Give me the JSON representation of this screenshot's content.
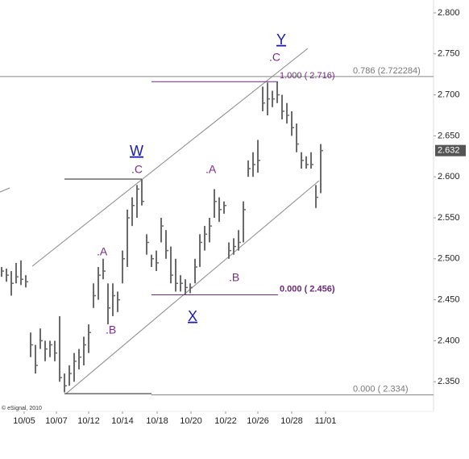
{
  "chart_data": {
    "type": "ohlc",
    "copyright": "© eSignal, 2010",
    "x": [
      2,
      8,
      14,
      20,
      26,
      32,
      38,
      44,
      50,
      56,
      62,
      68,
      74,
      80,
      86,
      92,
      98,
      104,
      110,
      116,
      122,
      128,
      134,
      140,
      146,
      152,
      158,
      164,
      170,
      176,
      182,
      188,
      194,
      200,
      206,
      212,
      218,
      224,
      230,
      236,
      242,
      248,
      254,
      260,
      266,
      272,
      278,
      284,
      290,
      296,
      302,
      308,
      314,
      320,
      326,
      332,
      338,
      344,
      350,
      356,
      362,
      368,
      374,
      380,
      386,
      392,
      398
    ],
    "high": [
      2.49,
      2.488,
      2.485,
      2.495,
      2.498,
      2.48,
      2.41,
      2.395,
      2.415,
      2.4,
      2.4,
      2.4,
      2.43,
      2.36,
      2.37,
      2.385,
      2.39,
      2.405,
      2.42,
      2.47,
      2.49,
      2.5,
      2.47,
      2.47,
      2.46,
      2.51,
      2.56,
      2.575,
      2.59,
      2.597,
      2.53,
      2.505,
      2.51,
      2.55,
      2.535,
      2.515,
      2.5,
      2.48,
      2.475,
      2.47,
      2.5,
      2.53,
      2.54,
      2.55,
      2.585,
      2.575,
      2.57,
      2.52,
      2.525,
      2.535,
      2.57,
      2.62,
      2.63,
      2.645,
      2.71,
      2.715,
      2.705,
      2.716,
      2.7,
      2.69,
      2.68,
      2.665,
      2.63,
      2.625,
      2.63,
      2.59,
      2.64
    ],
    "low": [
      2.478,
      2.472,
      2.455,
      2.47,
      2.468,
      2.465,
      2.38,
      2.36,
      2.39,
      2.375,
      2.38,
      2.375,
      2.35,
      2.337,
      2.345,
      2.35,
      2.365,
      2.37,
      2.385,
      2.44,
      2.45,
      2.475,
      2.42,
      2.43,
      2.435,
      2.47,
      2.49,
      2.54,
      2.55,
      2.565,
      2.505,
      2.49,
      2.485,
      2.52,
      2.5,
      2.47,
      2.46,
      2.46,
      2.456,
      2.458,
      2.47,
      2.49,
      2.51,
      2.52,
      2.55,
      2.545,
      2.555,
      2.5,
      2.505,
      2.51,
      2.52,
      2.6,
      2.6,
      2.605,
      2.68,
      2.675,
      2.685,
      2.69,
      2.67,
      2.665,
      2.65,
      2.63,
      2.61,
      2.61,
      2.61,
      2.562,
      2.58
    ],
    "close": [
      2.485,
      2.48,
      2.47,
      2.478,
      2.475,
      2.472,
      2.395,
      2.37,
      2.4,
      2.39,
      2.395,
      2.385,
      2.355,
      2.345,
      2.36,
      2.375,
      2.38,
      2.395,
      2.41,
      2.455,
      2.48,
      2.485,
      2.44,
      2.455,
      2.45,
      2.5,
      2.55,
      2.565,
      2.585,
      2.57,
      2.52,
      2.5,
      2.495,
      2.54,
      2.51,
      2.48,
      2.47,
      2.47,
      2.465,
      2.465,
      2.49,
      2.52,
      2.53,
      2.54,
      2.57,
      2.56,
      2.565,
      2.51,
      2.515,
      2.52,
      2.56,
      2.61,
      2.615,
      2.62,
      2.69,
      2.695,
      2.695,
      2.7,
      2.68,
      2.675,
      2.66,
      2.64,
      2.62,
      2.615,
      2.615,
      2.575,
      2.632
    ],
    "color": "#6a6a6a",
    "xlim": [
      0,
      538
    ],
    "xticks": [
      {
        "value": 30,
        "label": "10/05"
      },
      {
        "value": 70,
        "label": "10/07"
      },
      {
        "value": 110,
        "label": "10/12"
      },
      {
        "value": 152,
        "label": "10/14"
      },
      {
        "value": 195,
        "label": "10/18"
      },
      {
        "value": 237,
        "label": "10/20"
      },
      {
        "value": 280,
        "label": "10/22"
      },
      {
        "value": 320,
        "label": "10/26"
      },
      {
        "value": 362,
        "label": "10/28"
      },
      {
        "value": 404,
        "label": "11/01"
      }
    ],
    "ylim": [
      2.3138,
      2.8157
    ],
    "yticks": [
      {
        "value": 2.35,
        "label": "2.350"
      },
      {
        "value": 2.4,
        "label": "2.400"
      },
      {
        "value": 2.45,
        "label": "2.450"
      },
      {
        "value": 2.5,
        "label": "2.500"
      },
      {
        "value": 2.55,
        "label": "2.550"
      },
      {
        "value": 2.6,
        "label": "2.600"
      },
      {
        "value": 2.65,
        "label": "2.650"
      },
      {
        "value": 2.7,
        "label": "2.700"
      },
      {
        "value": 2.75,
        "label": "2.750"
      },
      {
        "value": 2.8,
        "label": "2.800"
      }
    ],
    "last_price": 2.632,
    "levels": [
      {
        "value": 2.722284,
        "label": "0.786 (2.722284)"
      },
      {
        "value": 2.716,
        "label": "1.000 ( 2.716)"
      },
      {
        "value": 2.456,
        "label": "0.000 ( 2.456)"
      },
      {
        "value": 2.334,
        "label": "0.000 ( 2.334)"
      }
    ],
    "wave_labels": [
      "Y",
      ".C",
      "W",
      ".C",
      ".A",
      ".A",
      ".B",
      ".B",
      "X"
    ]
  }
}
